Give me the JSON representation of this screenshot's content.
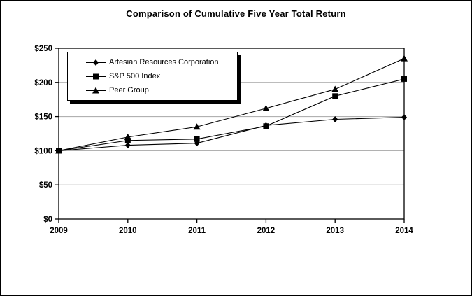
{
  "title": "Comparison of Cumulative Five Year Total Return",
  "chart_data": {
    "type": "line",
    "x": [
      2009,
      2010,
      2011,
      2012,
      2013,
      2014
    ],
    "xtick_labels": [
      "2009",
      "2010",
      "2011",
      "2012",
      "2013",
      "2014"
    ],
    "ytick_labels": [
      "$0",
      "$50",
      "$100",
      "$150",
      "$200",
      "$250"
    ],
    "ylim": [
      0,
      250
    ],
    "ytick_step": 50,
    "xlabel": "",
    "ylabel": "",
    "grid": "horizontal",
    "legend_position": "top-left-inside",
    "series": [
      {
        "name": "Artesian Resources Corporation",
        "marker": "diamond",
        "values": [
          100,
          108,
          111,
          137,
          146,
          149
        ]
      },
      {
        "name": "S&P 500 Index",
        "marker": "square",
        "values": [
          100,
          115,
          117,
          136,
          180,
          205
        ]
      },
      {
        "name": "Peer Group",
        "marker": "triangle",
        "values": [
          100,
          120,
          135,
          162,
          190,
          235
        ]
      }
    ],
    "colors": {
      "series_line": "#000000",
      "marker_fill": "#000000",
      "grid": "#a6a6a6",
      "axis": "#000000",
      "background": "#ffffff",
      "border": "#000000"
    }
  }
}
